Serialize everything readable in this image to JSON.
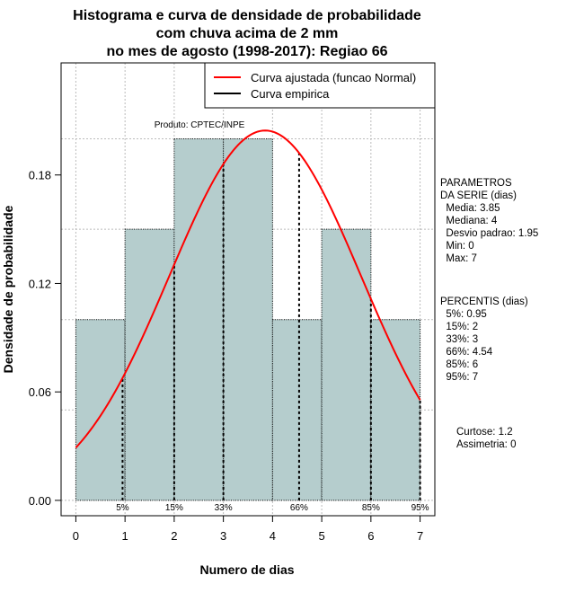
{
  "chart_data": {
    "type": "bar",
    "title_lines": [
      "Histograma e curva de densidade de probabilidade",
      "com chuva acima de 2 mm",
      "no mes de agosto (1998-2017): Regiao 66"
    ],
    "xlabel": "Numero de dias",
    "ylabel": "Densidade de probabilidade",
    "xlim": [
      -0.3,
      7.3
    ],
    "ylim": [
      -0.0085,
      0.242
    ],
    "x_ticks": [
      0,
      1,
      2,
      3,
      4,
      5,
      6,
      7
    ],
    "x_tick_labels": [
      "0",
      "1",
      "2",
      "3",
      "4",
      "5",
      "6",
      "7"
    ],
    "y_ticks": [
      0.0,
      0.06,
      0.12,
      0.18
    ],
    "y_tick_labels": [
      "0.00",
      "0.06",
      "0.12",
      "0.18"
    ],
    "x_grid": [
      0,
      1,
      2,
      3,
      4,
      5,
      6,
      7
    ],
    "y_grid": [
      0.0,
      0.05,
      0.1,
      0.15,
      0.2
    ],
    "bins": [
      {
        "x0": 0,
        "x1": 1,
        "density": 0.1
      },
      {
        "x0": 1,
        "x1": 2,
        "density": 0.15
      },
      {
        "x0": 2,
        "x1": 3,
        "density": 0.2
      },
      {
        "x0": 3,
        "x1": 4,
        "density": 0.2
      },
      {
        "x0": 4,
        "x1": 5,
        "density": 0.1
      },
      {
        "x0": 5,
        "x1": 6,
        "density": 0.15
      },
      {
        "x0": 6,
        "x1": 7,
        "density": 0.1
      }
    ],
    "fitted_curve": {
      "name": "Curva ajustada (funcao Normal)",
      "mean": 3.85,
      "sd": 1.95,
      "x_range": [
        0,
        7
      ],
      "color": "#ff0000"
    },
    "empirical_curve": {
      "name": "Curva empirica",
      "color": "#000000"
    },
    "percentile_lines": [
      {
        "x": 0.95,
        "label": "5%"
      },
      {
        "x": 2,
        "label": "15%"
      },
      {
        "x": 3,
        "label": "33%"
      },
      {
        "x": 4.54,
        "label": "66%"
      },
      {
        "x": 6,
        "label": "85%"
      },
      {
        "x": 7,
        "label": "95%"
      }
    ],
    "annotation": "Produto: CPTEC/INPE",
    "legend": {
      "position": "top-right"
    },
    "bar_color": "#b5cdcd",
    "grid_color": "#bbbbbb"
  },
  "side_panel": {
    "parametros_lines": [
      "PARAMETROS",
      "DA SERIE (dias)",
      "  Media: 3.85",
      "  Mediana: 4",
      "  Desvio padrao: 1.95",
      "  Min: 0",
      "  Max: 7"
    ],
    "percentis_lines": [
      "PERCENTIS (dias)",
      "  5%: 0.95",
      "  15%: 2",
      "  33%: 3",
      "  66%: 4.54",
      "  85%: 6",
      "  95%: 7"
    ],
    "stats_lines": [
      "Curtose: 1.2",
      "Assimetria: 0"
    ]
  }
}
